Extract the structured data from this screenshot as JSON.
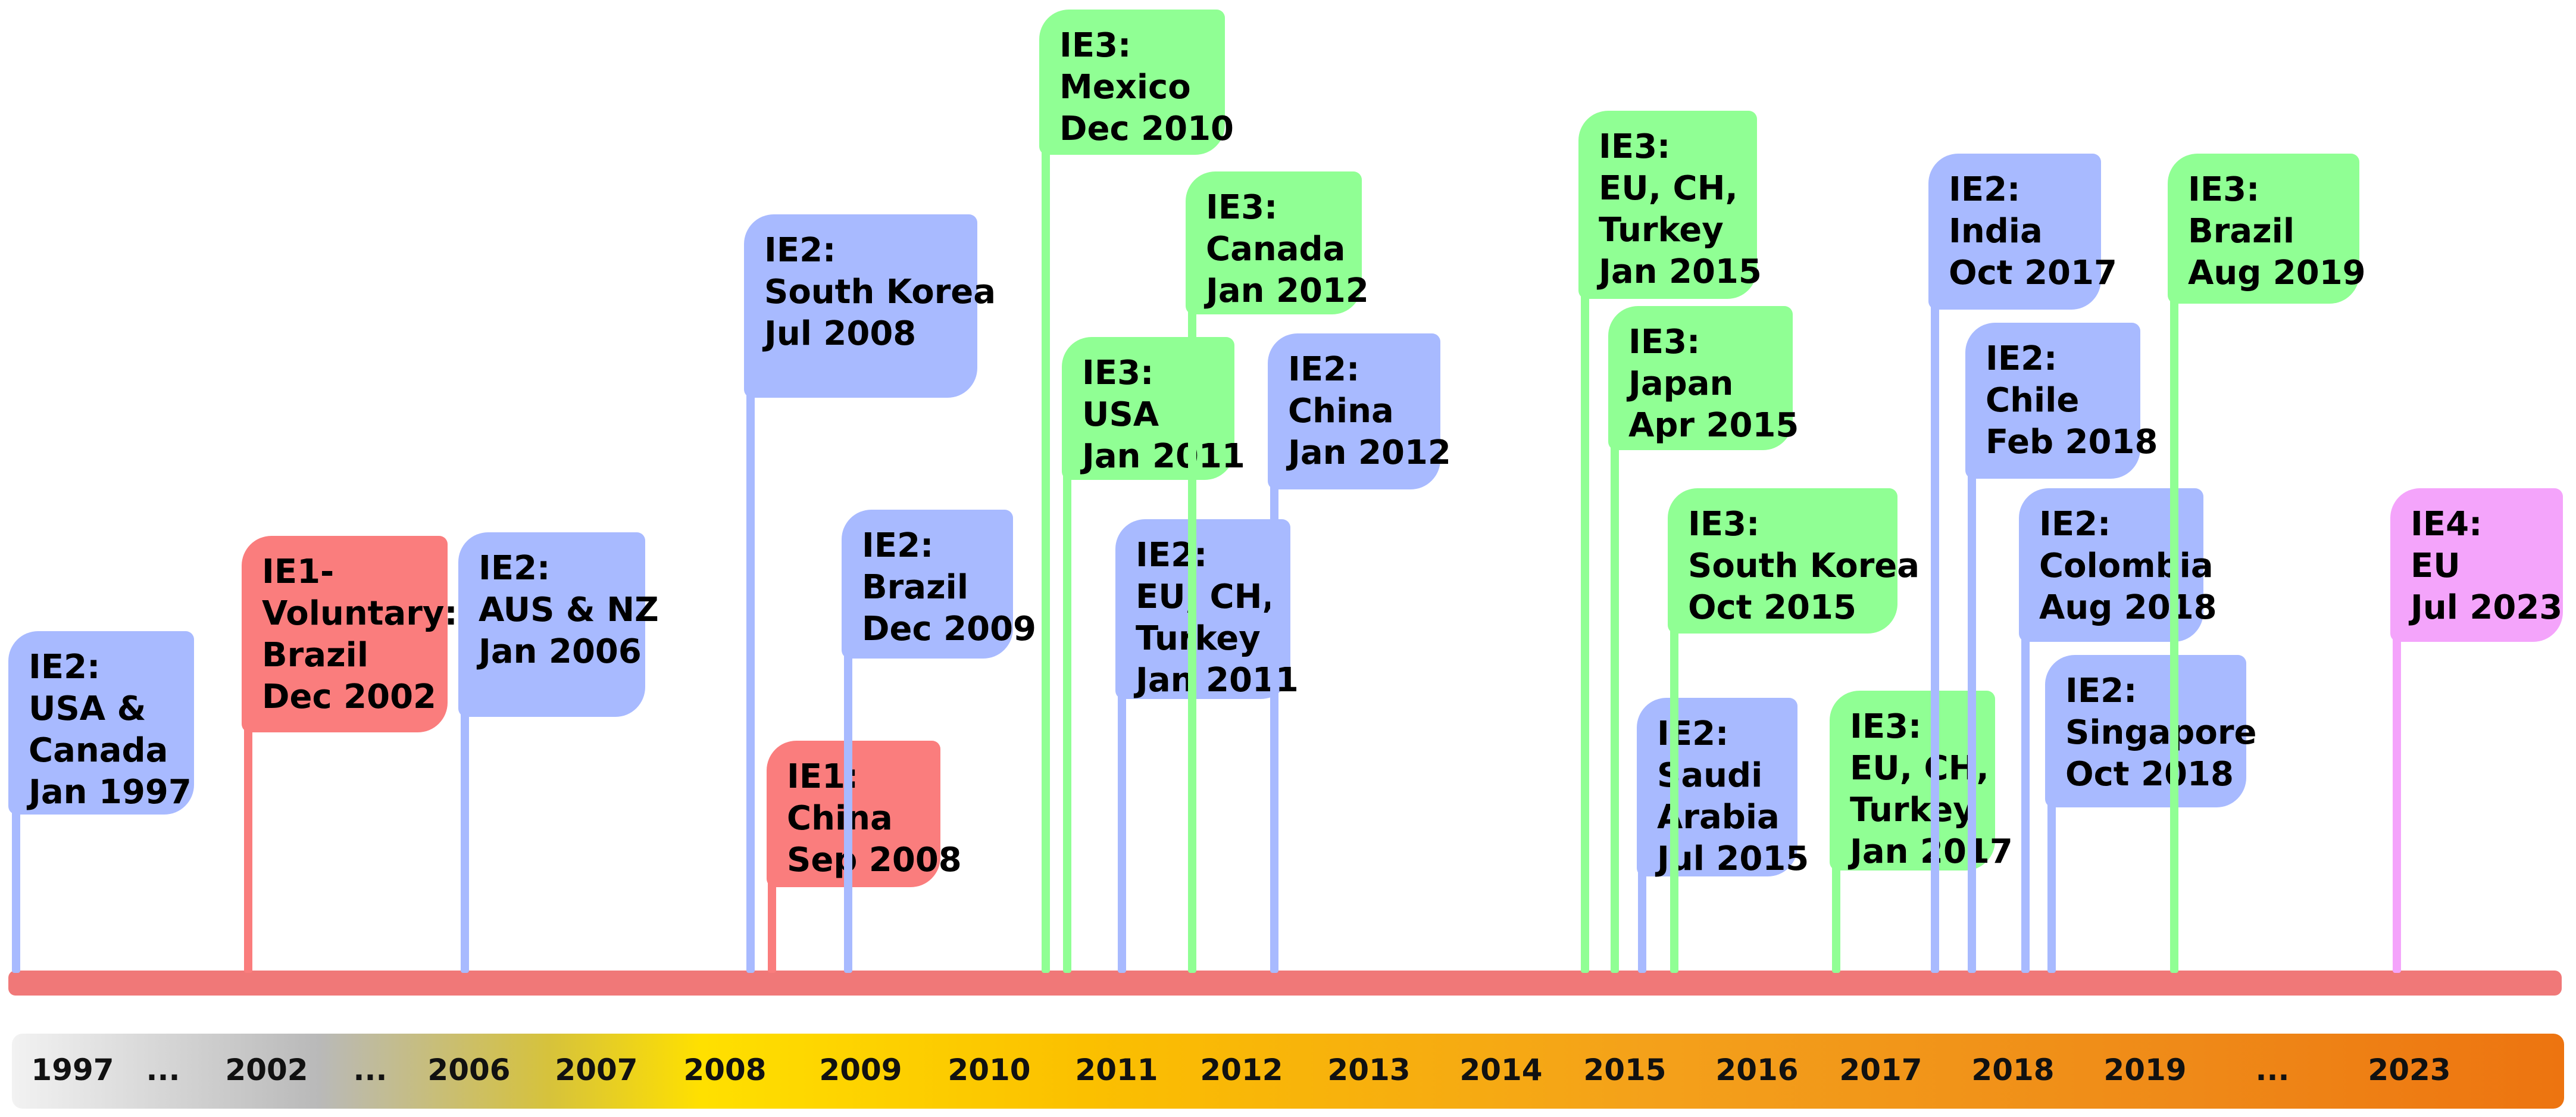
{
  "colors": {
    "ie1": "#fa7d7d",
    "ie2": "#a8baff",
    "ie3": "#90ff94",
    "ie4": "#f4a4fb",
    "baseline": "#f07878"
  },
  "timeline": {
    "years": [
      "1997",
      "...",
      "2002",
      "...",
      "2006",
      "2007",
      "2008",
      "2009",
      "2010",
      "2011",
      "2012",
      "2013",
      "2014",
      "2015",
      "2016",
      "2017",
      "2018",
      "2019",
      "...",
      "2023"
    ]
  },
  "events": [
    {
      "level": "ie2",
      "lines": [
        "IE2:",
        "USA &",
        "Canada",
        "Jan 1997"
      ]
    },
    {
      "level": "ie1",
      "lines": [
        "IE1-",
        "Voluntary:",
        "Brazil",
        "Dec 2002"
      ]
    },
    {
      "level": "ie2",
      "lines": [
        "IE2:",
        "AUS & NZ",
        "Jan 2006"
      ]
    },
    {
      "level": "ie2",
      "lines": [
        "IE2:",
        "South Korea",
        "Jul 2008"
      ]
    },
    {
      "level": "ie1",
      "lines": [
        "IE1:",
        "China",
        "Sep 2008"
      ]
    },
    {
      "level": "ie2",
      "lines": [
        "IE2:",
        "Brazil",
        "Dec 2009"
      ]
    },
    {
      "level": "ie3",
      "lines": [
        "IE3:",
        "Mexico",
        "Dec 2010"
      ]
    },
    {
      "level": "ie3",
      "lines": [
        "IE3:",
        "USA",
        "Jan 2011"
      ]
    },
    {
      "level": "ie2",
      "lines": [
        "IE2:",
        "EU, CH,",
        "Turkey",
        "Jan 2011"
      ]
    },
    {
      "level": "ie3",
      "lines": [
        "IE3:",
        "Canada",
        "Jan 2012"
      ]
    },
    {
      "level": "ie2",
      "lines": [
        "IE2:",
        "China",
        "Jan 2012"
      ]
    },
    {
      "level": "ie3",
      "lines": [
        "IE3:",
        "EU, CH,",
        "Turkey",
        "Jan 2015"
      ]
    },
    {
      "level": "ie3",
      "lines": [
        "IE3:",
        "Japan",
        "Apr 2015"
      ]
    },
    {
      "level": "ie2",
      "lines": [
        "IE2:",
        "Saudi",
        "Arabia",
        "Jul 2015"
      ]
    },
    {
      "level": "ie3",
      "lines": [
        "IE3:",
        "South Korea",
        "Oct 2015"
      ]
    },
    {
      "level": "ie3",
      "lines": [
        "IE3:",
        "EU, CH,",
        "Turkey",
        "Jan 2017"
      ]
    },
    {
      "level": "ie2",
      "lines": [
        "IE2:",
        "India",
        "Oct 2017"
      ]
    },
    {
      "level": "ie2",
      "lines": [
        "IE2:",
        "Chile",
        "Feb 2018"
      ]
    },
    {
      "level": "ie2",
      "lines": [
        "IE2:",
        "Colombia",
        "Aug 2018"
      ]
    },
    {
      "level": "ie2",
      "lines": [
        "IE2:",
        "Singapore",
        "Oct 2018"
      ]
    },
    {
      "level": "ie3",
      "lines": [
        "IE3:",
        "Brazil",
        "Aug 2019"
      ]
    },
    {
      "level": "ie4",
      "lines": [
        "IE4:",
        "EU",
        "Jul 2023"
      ]
    }
  ]
}
